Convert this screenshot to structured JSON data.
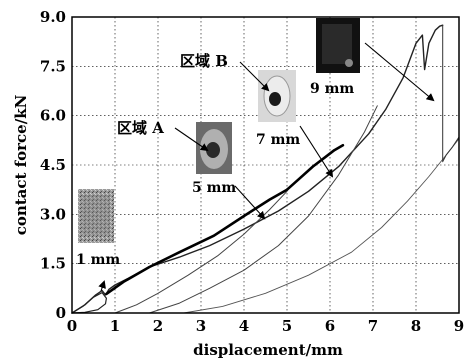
{
  "chart_data": {
    "type": "line",
    "xlabel": "displacement/mm",
    "ylabel": "contact force/kN",
    "xlim": [
      0,
      9
    ],
    "ylim": [
      0,
      9
    ],
    "x_ticks": [
      "0",
      "1",
      "2",
      "3",
      "4",
      "5",
      "6",
      "7",
      "8",
      "9"
    ],
    "y_ticks": [
      "0",
      "1.5",
      "3.0",
      "4.5",
      "6.0",
      "7.5",
      "9.0"
    ],
    "grid": true,
    "series": [
      {
        "x": [
          0,
          0.3,
          0.55,
          0.7,
          0.78,
          0.86,
          1.0,
          1.3,
          1.8,
          2.5,
          3.2,
          4.0,
          4.8,
          5.5,
          6.2,
          6.9,
          7.3,
          7.7,
          8.0,
          8.15,
          8.2,
          8.3,
          8.45,
          8.55,
          8.62
        ],
        "y": [
          0,
          0.25,
          0.55,
          0.68,
          0.55,
          0.72,
          0.85,
          1.05,
          1.4,
          1.7,
          2.05,
          2.55,
          3.1,
          3.7,
          4.45,
          5.45,
          6.2,
          7.15,
          8.2,
          8.45,
          7.4,
          8.2,
          8.6,
          8.72,
          8.75
        ],
        "color": "#222222",
        "width": 1.4
      },
      {
        "x": [
          0,
          0.25,
          0.5,
          0.7,
          0.8,
          0.78,
          0.6,
          0.3,
          0
        ],
        "y": [
          0,
          0.2,
          0.48,
          0.62,
          0.45,
          0.28,
          0.1,
          0.02,
          0
        ],
        "color": "#222222",
        "width": 1.2
      },
      {
        "x": [
          0.8,
          1.2,
          1.8,
          2.5,
          3.3,
          4.0,
          4.6,
          5.0
        ],
        "y": [
          0.58,
          0.95,
          1.4,
          1.85,
          2.35,
          2.95,
          3.45,
          3.75
        ],
        "color": "#000000",
        "width": 2.6
      },
      {
        "x": [
          1.0,
          1.5,
          2.0,
          2.7,
          3.4,
          4.0,
          4.6,
          5.0
        ],
        "y": [
          0,
          0.25,
          0.6,
          1.15,
          1.75,
          2.4,
          3.15,
          3.7
        ],
        "color": "#444444",
        "width": 1.0
      },
      {
        "x": [
          5.0,
          5.3,
          5.6,
          5.9,
          6.1,
          6.3
        ],
        "y": [
          3.75,
          4.1,
          4.45,
          4.75,
          4.95,
          5.1
        ],
        "color": "#000000",
        "width": 2.6
      },
      {
        "x": [
          1.8,
          2.5,
          3.2,
          4.0,
          4.8,
          5.5,
          6.2,
          6.8,
          7.1
        ],
        "y": [
          0,
          0.3,
          0.75,
          1.3,
          2.05,
          2.95,
          4.2,
          5.5,
          6.3
        ],
        "color": "#444444",
        "width": 1.0
      },
      {
        "x": [
          2.6,
          3.5,
          4.5,
          5.5,
          6.5,
          7.2,
          7.8,
          8.3,
          8.7,
          9.0
        ],
        "y": [
          0,
          0.2,
          0.6,
          1.15,
          1.85,
          2.6,
          3.4,
          4.15,
          4.8,
          5.3
        ],
        "color": "#555555",
        "width": 0.9
      },
      {
        "x": [
          8.62,
          8.62,
          8.7,
          8.85,
          9.0
        ],
        "y": [
          8.75,
          4.6,
          4.8,
          5.05,
          5.35
        ],
        "color": "#333333",
        "width": 1.0
      }
    ],
    "annotations": [
      "1 mm",
      "5 mm",
      "7 mm",
      "9 mm",
      "区域 A",
      "区域 B"
    ]
  }
}
